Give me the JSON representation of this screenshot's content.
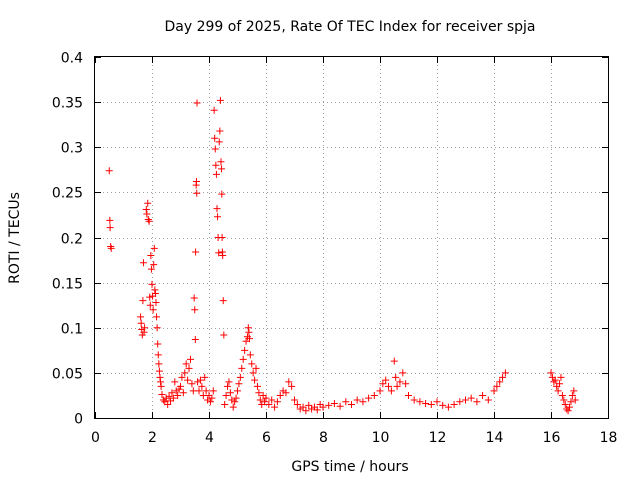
{
  "chart_data": {
    "type": "scatter",
    "title": "Day 299 of 2025, Rate Of TEC Index for receiver spja",
    "xlabel": "GPS time / hours",
    "ylabel": "ROTI / TECUs",
    "xlim": [
      0,
      18
    ],
    "ylim": [
      0,
      0.4
    ],
    "x_ticks": [
      0,
      2,
      4,
      6,
      8,
      10,
      12,
      14,
      16,
      18
    ],
    "y_ticks": [
      0,
      0.05,
      0.1,
      0.15,
      0.2,
      0.25,
      0.3,
      0.35,
      0.4
    ],
    "x_tick_labels": [
      "0",
      "2",
      "4",
      "6",
      "8",
      "10",
      "12",
      "14",
      "16",
      "18"
    ],
    "y_tick_labels": [
      "0",
      "0.05",
      "0.1",
      "0.15",
      "0.2",
      "0.25",
      "0.3",
      "0.35",
      "0.4"
    ],
    "grid": true,
    "marker": "+",
    "marker_color": "#ff0000",
    "series": [
      {
        "points": [
          [
            0.5,
            0.274
          ],
          [
            0.52,
            0.219
          ],
          [
            0.53,
            0.211
          ],
          [
            0.55,
            0.19
          ],
          [
            0.57,
            0.188
          ],
          [
            1.6,
            0.112
          ],
          [
            1.62,
            0.105
          ],
          [
            1.64,
            0.098
          ],
          [
            1.66,
            0.092
          ],
          [
            1.68,
            0.13
          ],
          [
            1.7,
            0.172
          ],
          [
            1.72,
            0.095
          ],
          [
            1.74,
            0.1
          ],
          [
            1.8,
            0.231
          ],
          [
            1.82,
            0.226
          ],
          [
            1.85,
            0.238
          ],
          [
            1.87,
            0.22
          ],
          [
            1.9,
            0.218
          ],
          [
            1.92,
            0.134
          ],
          [
            1.94,
            0.125
          ],
          [
            1.96,
            0.18
          ],
          [
            1.98,
            0.165
          ],
          [
            2.0,
            0.148
          ],
          [
            2.02,
            0.135
          ],
          [
            2.04,
            0.12
          ],
          [
            2.06,
            0.17
          ],
          [
            2.08,
            0.188
          ],
          [
            2.1,
            0.142
          ],
          [
            2.12,
            0.138
          ],
          [
            2.14,
            0.128
          ],
          [
            2.16,
            0.112
          ],
          [
            2.18,
            0.1
          ],
          [
            2.2,
            0.082
          ],
          [
            2.22,
            0.07
          ],
          [
            2.24,
            0.06
          ],
          [
            2.26,
            0.052
          ],
          [
            2.28,
            0.045
          ],
          [
            2.3,
            0.04
          ],
          [
            2.32,
            0.035
          ],
          [
            2.35,
            0.026
          ],
          [
            2.4,
            0.02
          ],
          [
            2.45,
            0.018
          ],
          [
            2.5,
            0.022
          ],
          [
            2.55,
            0.015
          ],
          [
            2.6,
            0.024
          ],
          [
            2.65,
            0.019
          ],
          [
            2.7,
            0.028
          ],
          [
            2.75,
            0.022
          ],
          [
            2.8,
            0.04
          ],
          [
            2.85,
            0.03
          ],
          [
            2.9,
            0.025
          ],
          [
            2.95,
            0.032
          ],
          [
            3.0,
            0.035
          ],
          [
            3.05,
            0.045
          ],
          [
            3.1,
            0.028
          ],
          [
            3.15,
            0.05
          ],
          [
            3.2,
            0.06
          ],
          [
            3.25,
            0.042
          ],
          [
            3.3,
            0.055
          ],
          [
            3.35,
            0.065
          ],
          [
            3.4,
            0.038
          ],
          [
            3.45,
            0.03
          ],
          [
            3.48,
            0.133
          ],
          [
            3.5,
            0.12
          ],
          [
            3.52,
            0.087
          ],
          [
            3.53,
            0.184
          ],
          [
            3.55,
            0.258
          ],
          [
            3.56,
            0.262
          ],
          [
            3.57,
            0.249
          ],
          [
            3.58,
            0.349
          ],
          [
            3.6,
            0.04
          ],
          [
            3.65,
            0.03
          ],
          [
            3.7,
            0.042
          ],
          [
            3.75,
            0.035
          ],
          [
            3.8,
            0.025
          ],
          [
            3.85,
            0.045
          ],
          [
            3.9,
            0.03
          ],
          [
            3.95,
            0.02
          ],
          [
            4.0,
            0.025
          ],
          [
            4.05,
            0.018
          ],
          [
            4.1,
            0.022
          ],
          [
            4.15,
            0.03
          ],
          [
            4.18,
            0.341
          ],
          [
            4.2,
            0.31
          ],
          [
            4.22,
            0.298
          ],
          [
            4.24,
            0.28
          ],
          [
            4.26,
            0.27
          ],
          [
            4.28,
            0.232
          ],
          [
            4.3,
            0.223
          ],
          [
            4.32,
            0.2
          ],
          [
            4.34,
            0.183
          ],
          [
            4.36,
            0.306
          ],
          [
            4.38,
            0.318
          ],
          [
            4.4,
            0.352
          ],
          [
            4.42,
            0.284
          ],
          [
            4.44,
            0.276
          ],
          [
            4.45,
            0.248
          ],
          [
            4.46,
            0.2
          ],
          [
            4.47,
            0.184
          ],
          [
            4.48,
            0.18
          ],
          [
            4.5,
            0.13
          ],
          [
            4.52,
            0.092
          ],
          [
            4.55,
            0.015
          ],
          [
            4.6,
            0.025
          ],
          [
            4.65,
            0.035
          ],
          [
            4.7,
            0.04
          ],
          [
            4.75,
            0.028
          ],
          [
            4.8,
            0.02
          ],
          [
            4.85,
            0.012
          ],
          [
            4.9,
            0.018
          ],
          [
            4.95,
            0.022
          ],
          [
            5.0,
            0.03
          ],
          [
            5.05,
            0.038
          ],
          [
            5.1,
            0.045
          ],
          [
            5.15,
            0.055
          ],
          [
            5.2,
            0.065
          ],
          [
            5.25,
            0.075
          ],
          [
            5.3,
            0.085
          ],
          [
            5.35,
            0.09
          ],
          [
            5.38,
            0.1
          ],
          [
            5.4,
            0.095
          ],
          [
            5.42,
            0.088
          ],
          [
            5.45,
            0.07
          ],
          [
            5.5,
            0.06
          ],
          [
            5.55,
            0.05
          ],
          [
            5.6,
            0.042
          ],
          [
            5.65,
            0.055
          ],
          [
            5.7,
            0.035
          ],
          [
            5.75,
            0.028
          ],
          [
            5.8,
            0.02
          ],
          [
            5.85,
            0.015
          ],
          [
            5.9,
            0.025
          ],
          [
            5.95,
            0.018
          ],
          [
            6.0,
            0.022
          ],
          [
            6.1,
            0.015
          ],
          [
            6.2,
            0.02
          ],
          [
            6.3,
            0.012
          ],
          [
            6.4,
            0.018
          ],
          [
            6.5,
            0.025
          ],
          [
            6.6,
            0.03
          ],
          [
            6.7,
            0.028
          ],
          [
            6.8,
            0.04
          ],
          [
            6.9,
            0.035
          ],
          [
            7.0,
            0.02
          ],
          [
            7.1,
            0.015
          ],
          [
            7.2,
            0.01
          ],
          [
            7.3,
            0.012
          ],
          [
            7.4,
            0.008
          ],
          [
            7.5,
            0.014
          ],
          [
            7.6,
            0.01
          ],
          [
            7.7,
            0.012
          ],
          [
            7.8,
            0.009
          ],
          [
            7.9,
            0.015
          ],
          [
            8.0,
            0.012
          ],
          [
            8.2,
            0.014
          ],
          [
            8.4,
            0.016
          ],
          [
            8.6,
            0.013
          ],
          [
            8.8,
            0.018
          ],
          [
            9.0,
            0.015
          ],
          [
            9.2,
            0.02
          ],
          [
            9.4,
            0.018
          ],
          [
            9.6,
            0.022
          ],
          [
            9.8,
            0.025
          ],
          [
            10.0,
            0.03
          ],
          [
            10.1,
            0.038
          ],
          [
            10.2,
            0.042
          ],
          [
            10.3,
            0.035
          ],
          [
            10.4,
            0.03
          ],
          [
            10.5,
            0.063
          ],
          [
            10.55,
            0.045
          ],
          [
            10.6,
            0.035
          ],
          [
            10.7,
            0.04
          ],
          [
            10.8,
            0.05
          ],
          [
            10.9,
            0.038
          ],
          [
            11.0,
            0.025
          ],
          [
            11.2,
            0.02
          ],
          [
            11.4,
            0.018
          ],
          [
            11.6,
            0.016
          ],
          [
            11.8,
            0.015
          ],
          [
            12.0,
            0.018
          ],
          [
            12.2,
            0.014
          ],
          [
            12.4,
            0.012
          ],
          [
            12.6,
            0.015
          ],
          [
            12.8,
            0.018
          ],
          [
            13.0,
            0.02
          ],
          [
            13.2,
            0.022
          ],
          [
            13.4,
            0.018
          ],
          [
            13.6,
            0.025
          ],
          [
            13.8,
            0.02
          ],
          [
            14.0,
            0.03
          ],
          [
            14.1,
            0.035
          ],
          [
            14.2,
            0.04
          ],
          [
            14.3,
            0.045
          ],
          [
            14.4,
            0.05
          ],
          [
            16.0,
            0.05
          ],
          [
            16.05,
            0.045
          ],
          [
            16.1,
            0.04
          ],
          [
            16.15,
            0.042
          ],
          [
            16.2,
            0.035
          ],
          [
            16.25,
            0.03
          ],
          [
            16.3,
            0.038
          ],
          [
            16.35,
            0.045
          ],
          [
            16.4,
            0.025
          ],
          [
            16.45,
            0.02
          ],
          [
            16.5,
            0.015
          ],
          [
            16.55,
            0.01
          ],
          [
            16.6,
            0.008
          ],
          [
            16.65,
            0.012
          ],
          [
            16.7,
            0.018
          ],
          [
            16.75,
            0.025
          ],
          [
            16.8,
            0.03
          ],
          [
            16.85,
            0.02
          ]
        ]
      }
    ]
  }
}
